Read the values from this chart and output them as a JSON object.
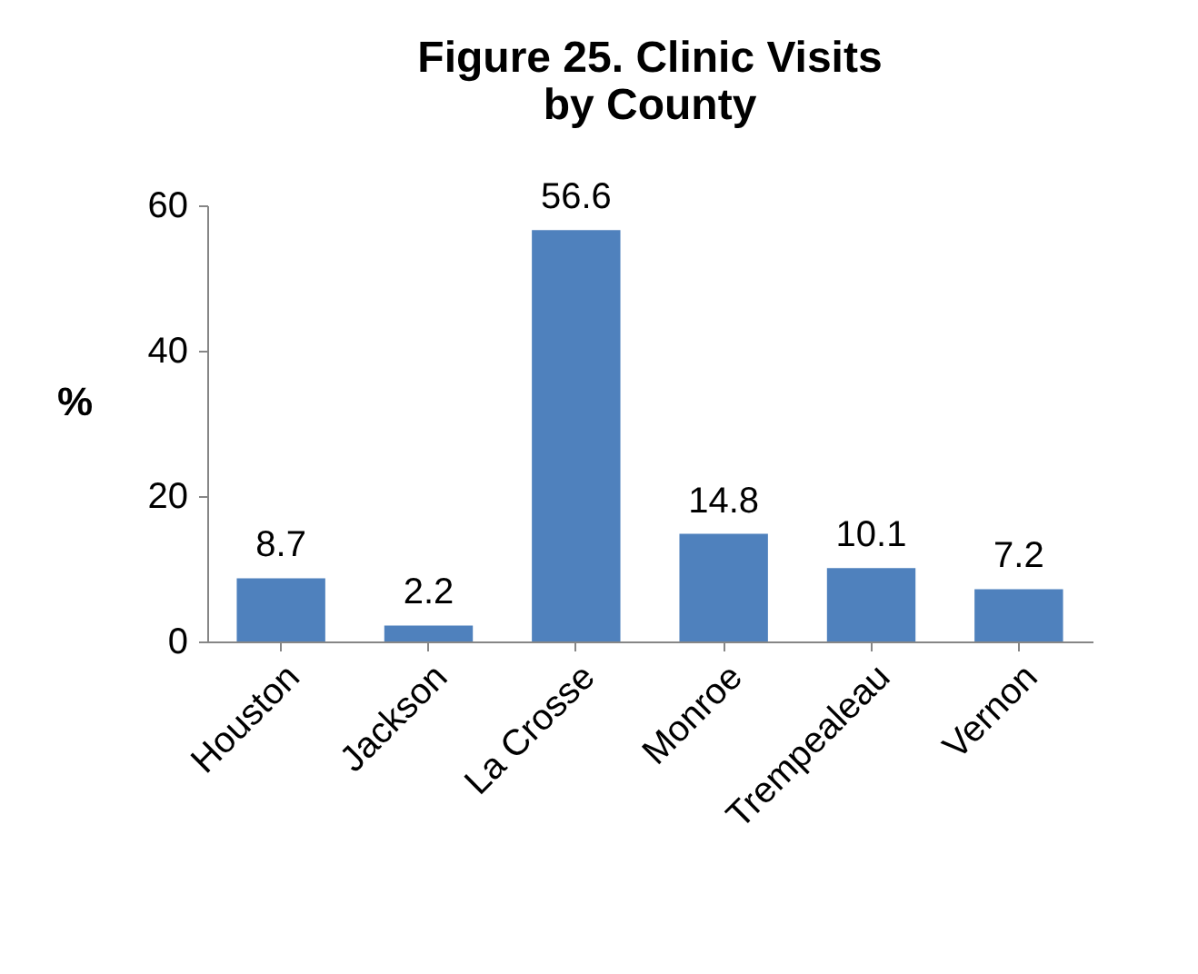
{
  "chart_data": {
    "type": "bar",
    "title": "Figure 25.  Clinic Visits\nby County",
    "ylabel": "%",
    "categories": [
      "Houston",
      "Jackson",
      "La Crosse",
      "Monroe",
      "Trempealeau",
      "Vernon"
    ],
    "values": [
      8.7,
      2.2,
      56.6,
      14.8,
      10.1,
      7.2
    ],
    "color": "#4f81bd",
    "ylim": [
      0,
      60
    ],
    "yticks": [
      0,
      20,
      40,
      60
    ],
    "grid": false,
    "data_labels": true
  }
}
